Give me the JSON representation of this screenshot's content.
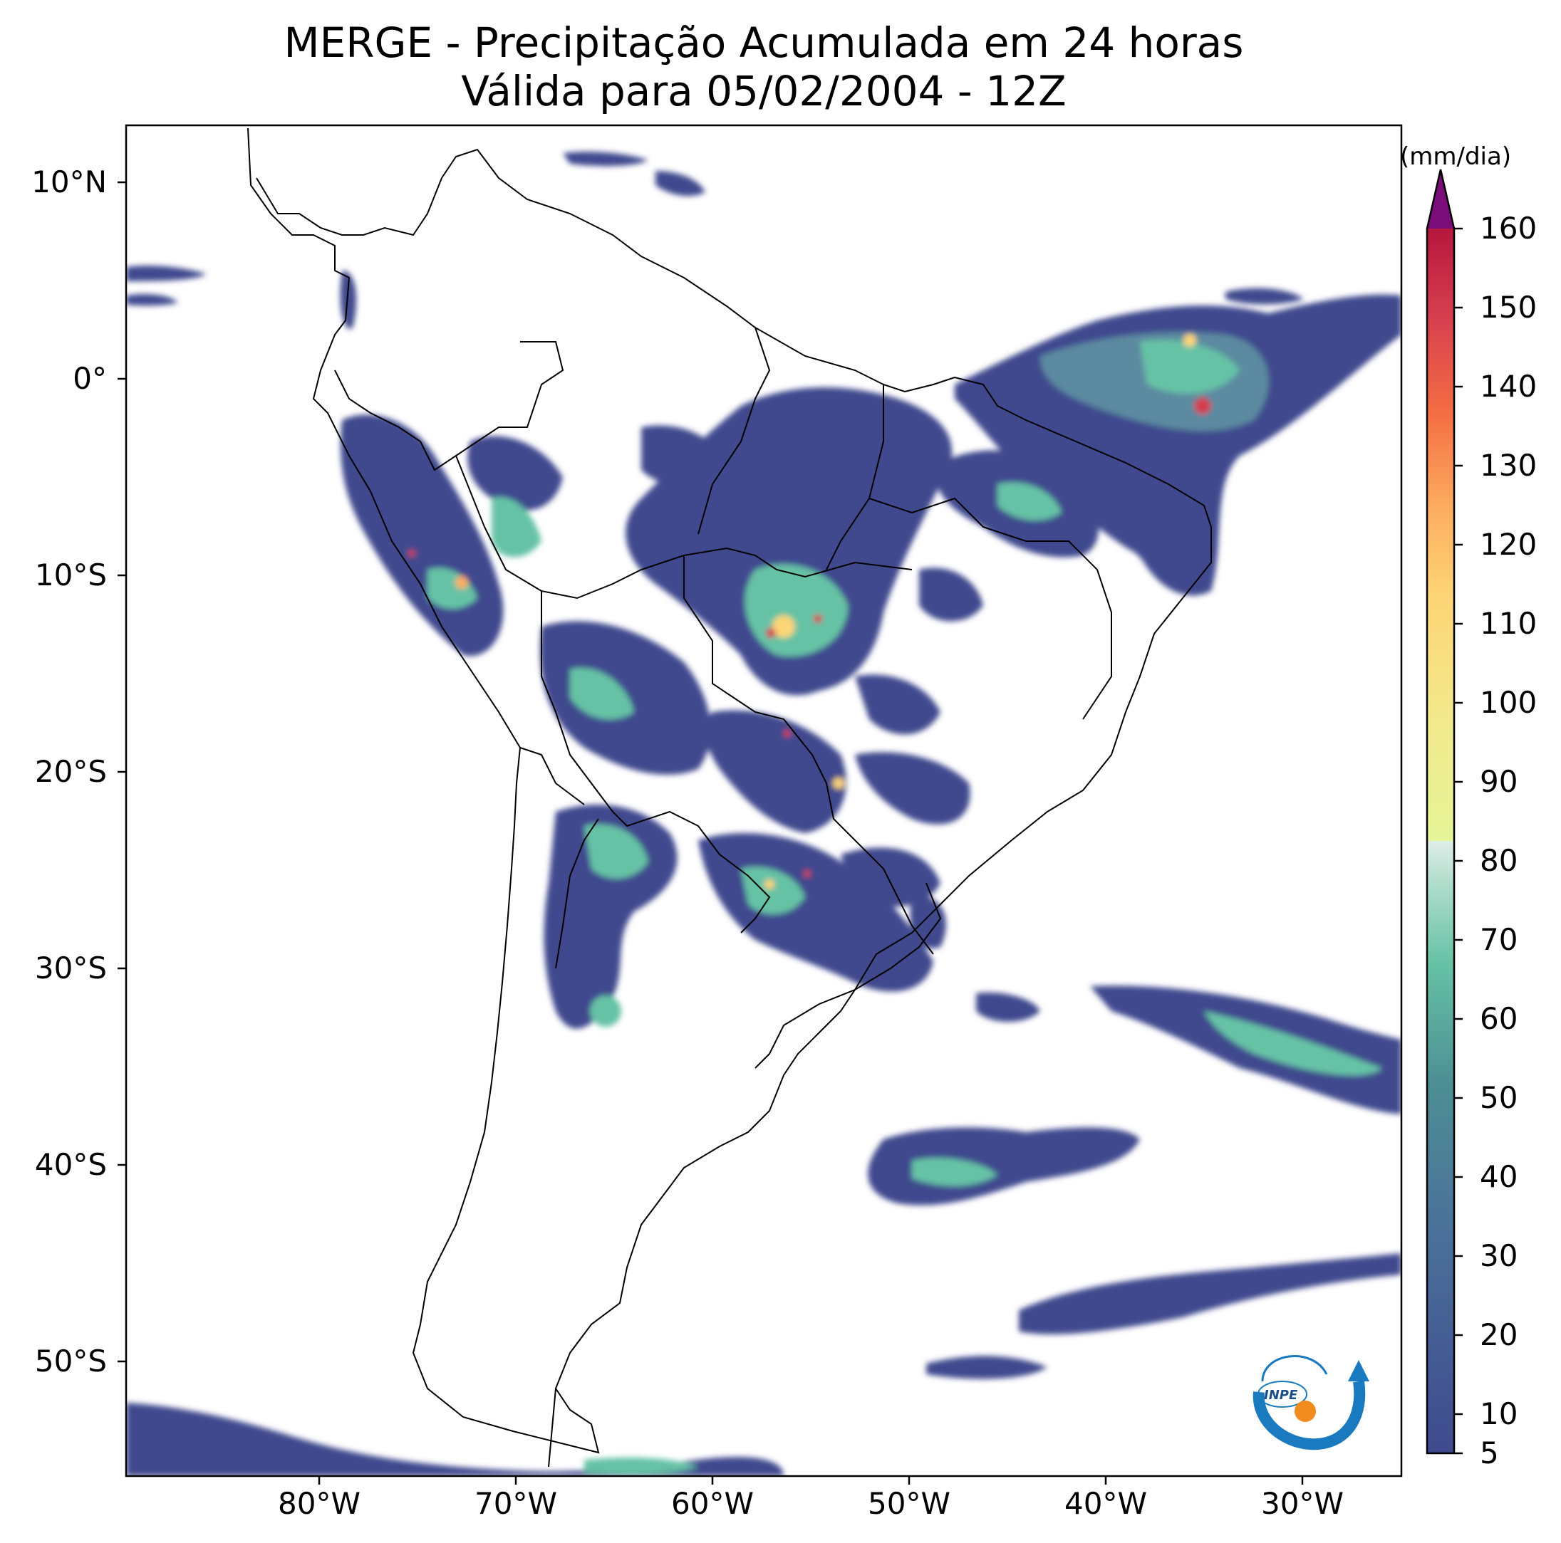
{
  "title_line1": "MERGE - Precipitação Acumulada em 24 horas",
  "title_line2": "Válida para 05/02/2004 - 12Z",
  "lat_ticks": [
    "10°N",
    "0°",
    "10°S",
    "20°S",
    "30°S",
    "40°S",
    "50°S"
  ],
  "lon_ticks": [
    "80°W",
    "70°W",
    "60°W",
    "50°W",
    "40°W",
    "30°W"
  ],
  "colorbar": {
    "unit": "(mm/dia)",
    "ticks": [
      "5",
      "10",
      "20",
      "30",
      "40",
      "50",
      "60",
      "70",
      "80",
      "90",
      "100",
      "110",
      "120",
      "130",
      "140",
      "150",
      "160"
    ],
    "range": [
      5,
      160
    ],
    "extend": "max",
    "colormap": "Spectral_r"
  },
  "logo": {
    "text": "INPE",
    "colors": [
      "#1a7ac0",
      "#f28c1e"
    ]
  },
  "colors": {
    "low_precip": "#3f4a8e",
    "mid_precip": "#66c2a5",
    "high_precip": "#fee08b",
    "extreme_precip": "#d53e4f",
    "max_arrow": "#7b0d7a"
  }
}
